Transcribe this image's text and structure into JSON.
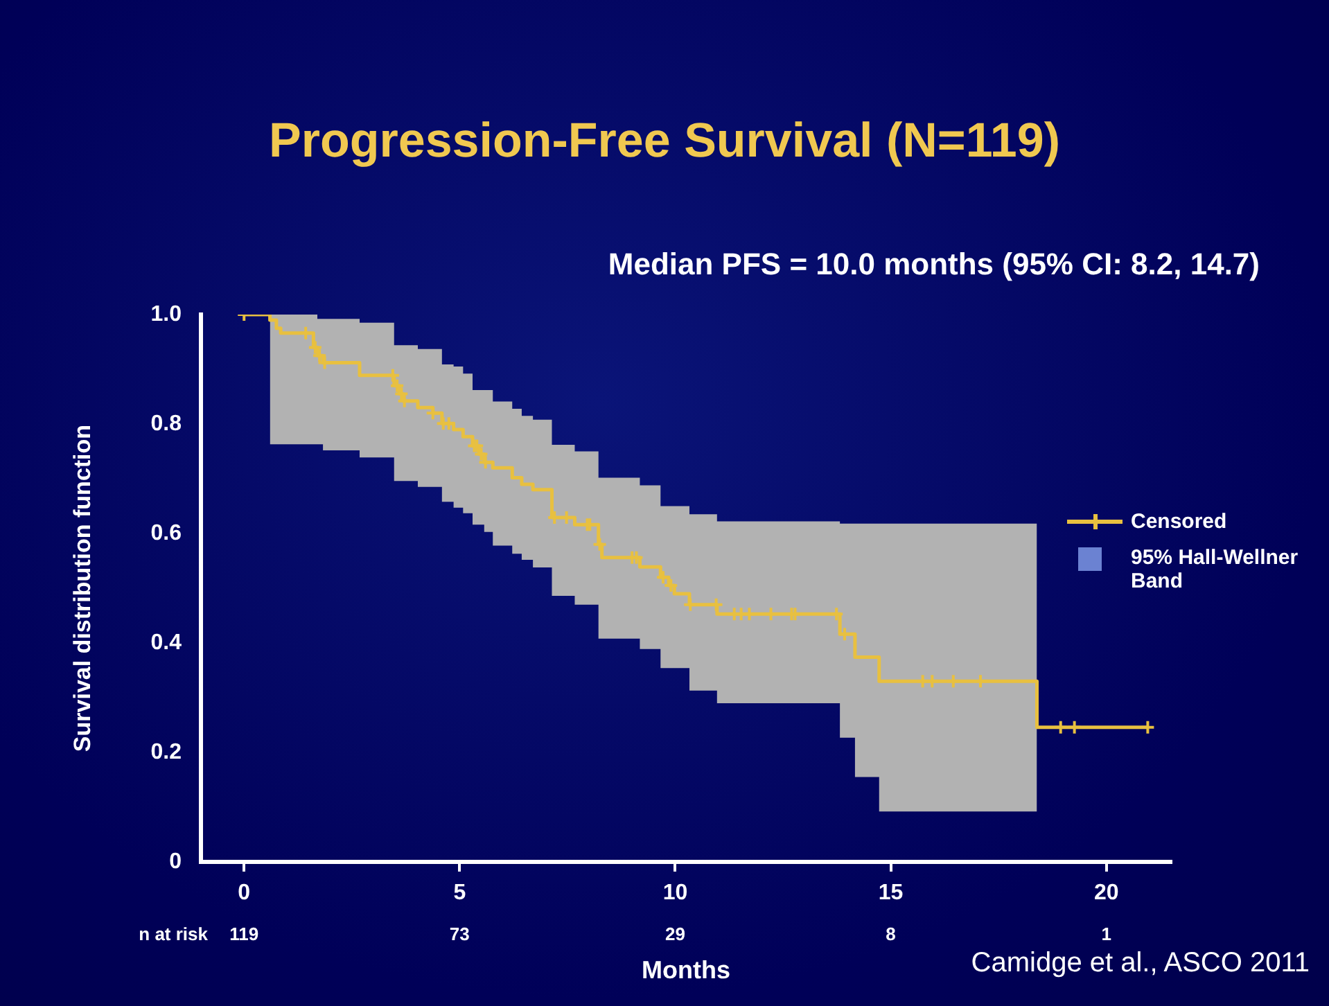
{
  "chart_data": {
    "type": "step",
    "title": "Progression-Free Survival (N=119)",
    "subtitle": "Median PFS = 10.0 months (95% CI: 8.2, 14.7)",
    "xlabel": "Months",
    "ylabel": "Survival distribution function",
    "xlim": [
      -1,
      21.5
    ],
    "xticks": [
      0,
      5,
      10,
      15,
      20
    ],
    "ylim": [
      0,
      1
    ],
    "yticks": [
      {
        "value": 0,
        "label": "0"
      },
      0.2,
      0.4,
      0.6,
      0.8,
      {
        "value": 1,
        "label": "1.0"
      }
    ],
    "grid": false,
    "legend": "right",
    "series": [
      {
        "name": "Censored",
        "color": "#e8c040",
        "x": [
          0,
          0.6,
          0.75,
          0.85,
          1.61,
          1.7,
          1.83,
          2.68,
          3.48,
          3.6,
          3.69,
          4.03,
          4.38,
          4.59,
          4.86,
          5.08,
          5.3,
          5.45,
          5.57,
          5.77,
          6.22,
          6.44,
          6.7,
          7.14,
          7.67,
          8.22,
          8.3,
          9.18,
          9.66,
          9.85,
          9.98,
          10.33,
          10.97,
          13.82,
          14.17,
          14.73,
          18.39,
          18.39,
          20.96
        ],
        "values": [
          1,
          0.99,
          0.975,
          0.966,
          0.94,
          0.925,
          0.912,
          0.889,
          0.87,
          0.855,
          0.842,
          0.83,
          0.82,
          0.801,
          0.79,
          0.777,
          0.76,
          0.745,
          0.73,
          0.72,
          0.702,
          0.69,
          0.68,
          0.629,
          0.616,
          0.58,
          0.556,
          0.539,
          0.52,
          0.505,
          0.49,
          0.47,
          0.453,
          0.416,
          0.374,
          0.33,
          0.33,
          0.246,
          0.246
        ],
        "lower": [
          null,
          0.763,
          0.763,
          0.763,
          0.763,
          0.763,
          0.752,
          0.739,
          0.696,
          0.696,
          0.696,
          0.685,
          0.685,
          0.658,
          0.647,
          0.637,
          0.616,
          0.616,
          0.603,
          0.578,
          0.563,
          0.552,
          0.538,
          0.486,
          0.47,
          0.408,
          0.408,
          0.389,
          0.354,
          0.354,
          0.354,
          0.313,
          0.29,
          0.227,
          0.155,
          0.092,
          0.092,
          null,
          null
        ],
        "upper": [
          null,
          1,
          1,
          1,
          1,
          0.992,
          0.992,
          0.985,
          0.944,
          0.944,
          0.944,
          0.937,
          0.937,
          0.909,
          0.905,
          0.892,
          0.862,
          0.862,
          0.862,
          0.841,
          0.828,
          0.815,
          0.808,
          0.762,
          0.75,
          0.702,
          0.702,
          0.688,
          0.65,
          0.65,
          0.65,
          0.635,
          0.622,
          0.618,
          0.618,
          0.618,
          0.618,
          null,
          null
        ]
      },
      {
        "type": "scatter",
        "marker": "cross",
        "color": "#e8c040",
        "x": [
          0,
          1.43,
          1.65,
          1.75,
          1.87,
          3.45,
          3.55,
          3.65,
          3.72,
          4.38,
          4.62,
          4.75,
          5.34,
          5.4,
          5.5,
          5.6,
          7.2,
          7.48,
          7.96,
          8.02,
          8.25,
          9.0,
          9.1,
          9.72,
          9.9,
          10.35,
          10.95,
          11.37,
          11.53,
          11.72,
          12.22,
          12.7,
          12.78,
          13.74,
          13.93,
          15.74,
          15.96,
          16.45,
          17.08,
          18.94,
          19.26,
          20.96
        ],
        "values": [
          1,
          0.966,
          0.94,
          0.925,
          0.912,
          0.889,
          0.87,
          0.855,
          0.842,
          0.82,
          0.801,
          0.801,
          0.76,
          0.76,
          0.745,
          0.73,
          0.629,
          0.629,
          0.616,
          0.616,
          0.58,
          0.556,
          0.556,
          0.52,
          0.505,
          0.47,
          0.47,
          0.453,
          0.453,
          0.453,
          0.453,
          0.453,
          0.453,
          0.453,
          0.416,
          0.33,
          0.33,
          0.33,
          0.33,
          0.246,
          0.246,
          0.246
        ]
      }
    ],
    "annotations": [
      "n at risk",
      "119",
      "73",
      "29",
      "8",
      "1",
      "95% Hall-Wellner Band",
      "Camidge et al., ASCO 2011"
    ]
  }
}
